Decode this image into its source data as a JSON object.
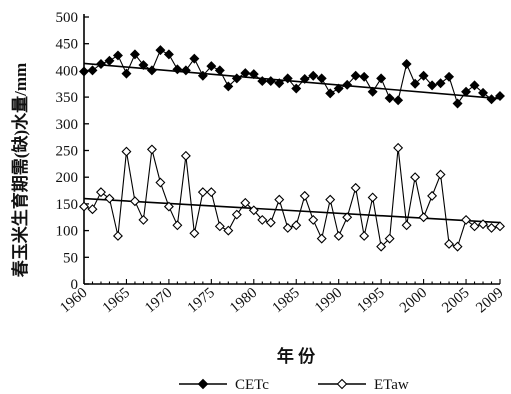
{
  "chart_data": {
    "type": "line",
    "xlabel": "年 份",
    "ylabel": "春玉米生育期需(缺)水量/mm",
    "xlim": [
      1960,
      2009
    ],
    "ylim": [
      0,
      500
    ],
    "x_ticks": [
      1960,
      1965,
      1970,
      1975,
      1980,
      1985,
      1990,
      1995,
      2000,
      2005,
      2009
    ],
    "y_ticks": [
      0,
      50,
      100,
      150,
      200,
      250,
      300,
      350,
      400,
      450,
      500
    ],
    "grid": false,
    "legend_position": "bottom",
    "x": [
      1960,
      1961,
      1962,
      1963,
      1964,
      1965,
      1966,
      1967,
      1968,
      1969,
      1970,
      1971,
      1972,
      1973,
      1974,
      1975,
      1976,
      1977,
      1978,
      1979,
      1980,
      1981,
      1982,
      1983,
      1984,
      1985,
      1986,
      1987,
      1988,
      1989,
      1990,
      1991,
      1992,
      1993,
      1994,
      1995,
      1996,
      1997,
      1998,
      1999,
      2000,
      2001,
      2002,
      2003,
      2004,
      2005,
      2006,
      2007,
      2008,
      2009
    ],
    "series": [
      {
        "name": "CETc",
        "marker": "filled-diamond",
        "color": "#000000",
        "values": [
          398,
          400,
          412,
          418,
          428,
          394,
          430,
          410,
          400,
          438,
          430,
          402,
          400,
          422,
          390,
          408,
          400,
          370,
          385,
          395,
          393,
          380,
          380,
          376,
          385,
          366,
          384,
          390,
          385,
          357,
          366,
          373,
          390,
          388,
          360,
          385,
          348,
          344,
          412,
          375,
          390,
          372,
          376,
          388,
          338,
          360,
          372,
          358,
          346,
          352
        ],
        "trend": [
          413,
          347
        ]
      },
      {
        "name": "ETaw",
        "marker": "open-diamond",
        "color": "#000000",
        "values": [
          145,
          140,
          172,
          160,
          90,
          248,
          155,
          120,
          252,
          190,
          145,
          110,
          240,
          95,
          172,
          172,
          108,
          100,
          130,
          152,
          138,
          120,
          115,
          158,
          105,
          110,
          165,
          120,
          85,
          158,
          90,
          125,
          180,
          90,
          162,
          70,
          85,
          255,
          110,
          200,
          125,
          165,
          205,
          75,
          70,
          120,
          108,
          112,
          105,
          108
        ],
        "trend": [
          160,
          115
        ]
      }
    ]
  }
}
